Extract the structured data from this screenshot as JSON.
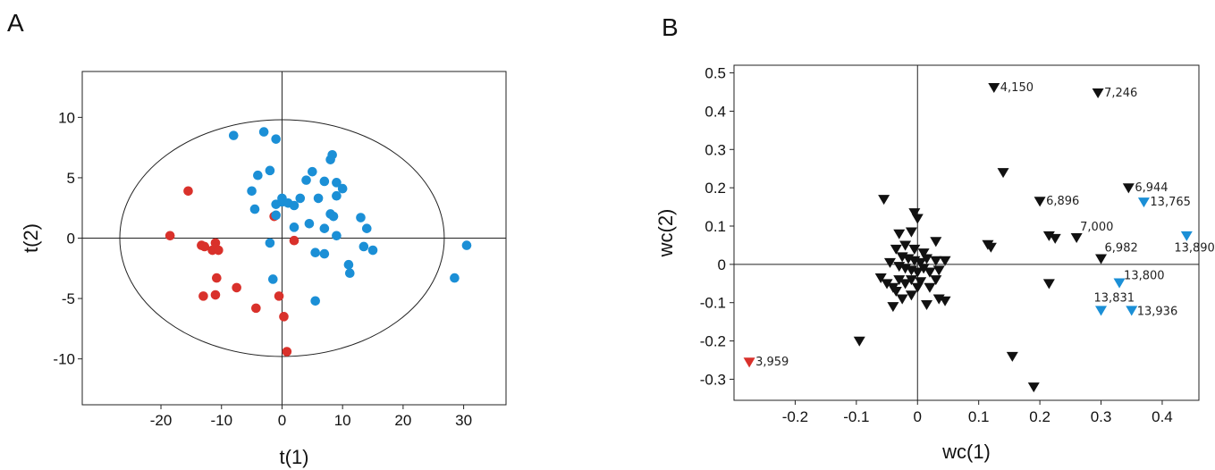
{
  "colors": {
    "red": "#d9312b",
    "blue": "#1b8fd6",
    "black": "#111111"
  },
  "chart_data": [
    {
      "panel": "A",
      "type": "scatter",
      "xlabel": "t(1)",
      "ylabel": "t(2)",
      "xlim": [
        -33,
        37
      ],
      "ylim": [
        -13.8,
        13.8
      ],
      "xticks": [
        -20,
        -10,
        0,
        10,
        20,
        30
      ],
      "yticks": [
        -10,
        -5,
        0,
        5,
        10
      ],
      "grid": false,
      "ellipse": {
        "center": [
          0,
          0
        ],
        "rx": 26.8,
        "ry": 9.8
      },
      "series": [
        {
          "color": "red",
          "points": [
            [
              -15.5,
              3.9
            ],
            [
              -18.5,
              0.2
            ],
            [
              -13.3,
              -0.6
            ],
            [
              -12.8,
              -0.7
            ],
            [
              -11.5,
              -1.0
            ],
            [
              -11.0,
              -0.4
            ],
            [
              -10.5,
              -1.0
            ],
            [
              -10.8,
              -3.3
            ],
            [
              -11.0,
              -4.7
            ],
            [
              -13.0,
              -4.8
            ],
            [
              -7.5,
              -4.1
            ],
            [
              -4.3,
              -5.8
            ],
            [
              -0.5,
              -4.8
            ],
            [
              0.3,
              -6.5
            ],
            [
              0.8,
              -9.4
            ],
            [
              -1.3,
              1.8
            ],
            [
              2.0,
              -0.2
            ]
          ]
        },
        {
          "color": "blue",
          "points": [
            [
              -8,
              8.5
            ],
            [
              -3,
              8.8
            ],
            [
              -1,
              8.2
            ],
            [
              -2,
              5.6
            ],
            [
              -4,
              5.2
            ],
            [
              -5,
              3.9
            ],
            [
              -4.5,
              2.4
            ],
            [
              -1,
              1.9
            ],
            [
              -1,
              2.8
            ],
            [
              0,
              3.0
            ],
            [
              0,
              3.3
            ],
            [
              1,
              2.9
            ],
            [
              2,
              2.7
            ],
            [
              3,
              3.3
            ],
            [
              4,
              4.8
            ],
            [
              5,
              5.5
            ],
            [
              6,
              3.3
            ],
            [
              7,
              4.7
            ],
            [
              8,
              6.5
            ],
            [
              8.3,
              6.9
            ],
            [
              9,
              3.5
            ],
            [
              9,
              4.6
            ],
            [
              10,
              4.1
            ],
            [
              8,
              2.0
            ],
            [
              8.5,
              1.8
            ],
            [
              7,
              0.8
            ],
            [
              4.5,
              1.2
            ],
            [
              2,
              0.9
            ],
            [
              9,
              0.2
            ],
            [
              5.5,
              -1.2
            ],
            [
              7,
              -1.3
            ],
            [
              11,
              -2.2
            ],
            [
              11.2,
              -2.9
            ],
            [
              13,
              1.7
            ],
            [
              14,
              0.8
            ],
            [
              13.5,
              -0.7
            ],
            [
              15,
              -1.0
            ],
            [
              -2,
              -0.4
            ],
            [
              -1.5,
              -3.4
            ],
            [
              5.5,
              -5.2
            ],
            [
              30.5,
              -0.6
            ],
            [
              28.5,
              -3.3
            ]
          ]
        }
      ]
    },
    {
      "panel": "B",
      "type": "scatter",
      "xlabel": "wc(1)",
      "ylabel": "wc(2)",
      "xlim": [
        -0.3,
        0.46
      ],
      "ylim": [
        -0.355,
        0.52
      ],
      "xticks": [
        -0.2,
        -0.1,
        0,
        0.1,
        0.2,
        0.3,
        0.4
      ],
      "yticks": [
        -0.3,
        -0.2,
        -0.1,
        0,
        0.1,
        0.2,
        0.3,
        0.4,
        0.5
      ],
      "grid": false,
      "marker": "triangle-down",
      "points": [
        {
          "x": 0.125,
          "y": 0.462,
          "color": "black",
          "label": "4,150"
        },
        {
          "x": 0.295,
          "y": 0.448,
          "color": "black",
          "label": "7,246"
        },
        {
          "x": 0.14,
          "y": 0.24,
          "color": "black"
        },
        {
          "x": 0.2,
          "y": 0.165,
          "color": "black",
          "label": "6,896"
        },
        {
          "x": 0.345,
          "y": 0.2,
          "color": "black",
          "label": "6,944"
        },
        {
          "x": 0.37,
          "y": 0.163,
          "color": "blue",
          "label": "13,765"
        },
        {
          "x": 0.215,
          "y": 0.075,
          "color": "black"
        },
        {
          "x": 0.225,
          "y": 0.068,
          "color": "black"
        },
        {
          "x": 0.26,
          "y": 0.07,
          "color": "black",
          "label": "7,000"
        },
        {
          "x": 0.3,
          "y": 0.015,
          "color": "black",
          "label": "6,982"
        },
        {
          "x": 0.44,
          "y": 0.075,
          "color": "blue",
          "label": "13,890"
        },
        {
          "x": 0.33,
          "y": -0.048,
          "color": "blue",
          "label": "13,800"
        },
        {
          "x": 0.3,
          "y": -0.12,
          "color": "blue",
          "label": "13,831"
        },
        {
          "x": 0.35,
          "y": -0.12,
          "color": "blue",
          "label": "13,936"
        },
        {
          "x": -0.275,
          "y": -0.255,
          "color": "red",
          "label": "3,959"
        },
        {
          "x": -0.095,
          "y": -0.2,
          "color": "black"
        },
        {
          "x": 0.155,
          "y": -0.24,
          "color": "black"
        },
        {
          "x": 0.19,
          "y": -0.32,
          "color": "black"
        },
        {
          "x": 0.215,
          "y": -0.05,
          "color": "black"
        },
        {
          "x": 0.115,
          "y": 0.052,
          "color": "black"
        },
        {
          "x": 0.12,
          "y": 0.045,
          "color": "black"
        },
        {
          "x": -0.055,
          "y": 0.17,
          "color": "black"
        },
        {
          "x": -0.005,
          "y": 0.135,
          "color": "black"
        },
        {
          "x": 0.0,
          "y": 0.12,
          "color": "black"
        },
        {
          "x": -0.03,
          "y": 0.08,
          "color": "black"
        },
        {
          "x": -0.01,
          "y": 0.085,
          "color": "black"
        },
        {
          "x": 0.03,
          "y": 0.06,
          "color": "black"
        },
        {
          "x": -0.035,
          "y": 0.04,
          "color": "black"
        },
        {
          "x": -0.02,
          "y": 0.05,
          "color": "black"
        },
        {
          "x": -0.005,
          "y": 0.04,
          "color": "black"
        },
        {
          "x": 0.01,
          "y": 0.03,
          "color": "black"
        },
        {
          "x": -0.025,
          "y": 0.02,
          "color": "black"
        },
        {
          "x": -0.015,
          "y": 0.015,
          "color": "black"
        },
        {
          "x": -0.005,
          "y": 0.01,
          "color": "black"
        },
        {
          "x": 0.005,
          "y": 0.005,
          "color": "black"
        },
        {
          "x": 0.015,
          "y": 0.015,
          "color": "black"
        },
        {
          "x": 0.03,
          "y": 0.01,
          "color": "black"
        },
        {
          "x": 0.045,
          "y": 0.01,
          "color": "black"
        },
        {
          "x": -0.03,
          "y": -0.005,
          "color": "black"
        },
        {
          "x": -0.02,
          "y": -0.01,
          "color": "black"
        },
        {
          "x": -0.01,
          "y": -0.015,
          "color": "black"
        },
        {
          "x": 0.0,
          "y": -0.02,
          "color": "black"
        },
        {
          "x": 0.01,
          "y": -0.01,
          "color": "black"
        },
        {
          "x": 0.02,
          "y": -0.02,
          "color": "black"
        },
        {
          "x": 0.035,
          "y": -0.015,
          "color": "black"
        },
        {
          "x": -0.06,
          "y": -0.035,
          "color": "black"
        },
        {
          "x": -0.05,
          "y": -0.05,
          "color": "black"
        },
        {
          "x": -0.04,
          "y": -0.06,
          "color": "black"
        },
        {
          "x": -0.03,
          "y": -0.04,
          "color": "black"
        },
        {
          "x": -0.02,
          "y": -0.05,
          "color": "black"
        },
        {
          "x": -0.01,
          "y": -0.04,
          "color": "black"
        },
        {
          "x": 0.005,
          "y": -0.045,
          "color": "black"
        },
        {
          "x": 0.02,
          "y": -0.06,
          "color": "black"
        },
        {
          "x": 0.03,
          "y": -0.04,
          "color": "black"
        },
        {
          "x": -0.035,
          "y": -0.07,
          "color": "black"
        },
        {
          "x": -0.025,
          "y": -0.09,
          "color": "black"
        },
        {
          "x": -0.01,
          "y": -0.08,
          "color": "black"
        },
        {
          "x": 0.0,
          "y": -0.06,
          "color": "black"
        },
        {
          "x": -0.04,
          "y": -0.11,
          "color": "black"
        },
        {
          "x": 0.015,
          "y": -0.105,
          "color": "black"
        },
        {
          "x": 0.035,
          "y": -0.09,
          "color": "black"
        },
        {
          "x": 0.045,
          "y": -0.095,
          "color": "black"
        },
        {
          "x": -0.045,
          "y": 0.005,
          "color": "black"
        }
      ]
    }
  ]
}
